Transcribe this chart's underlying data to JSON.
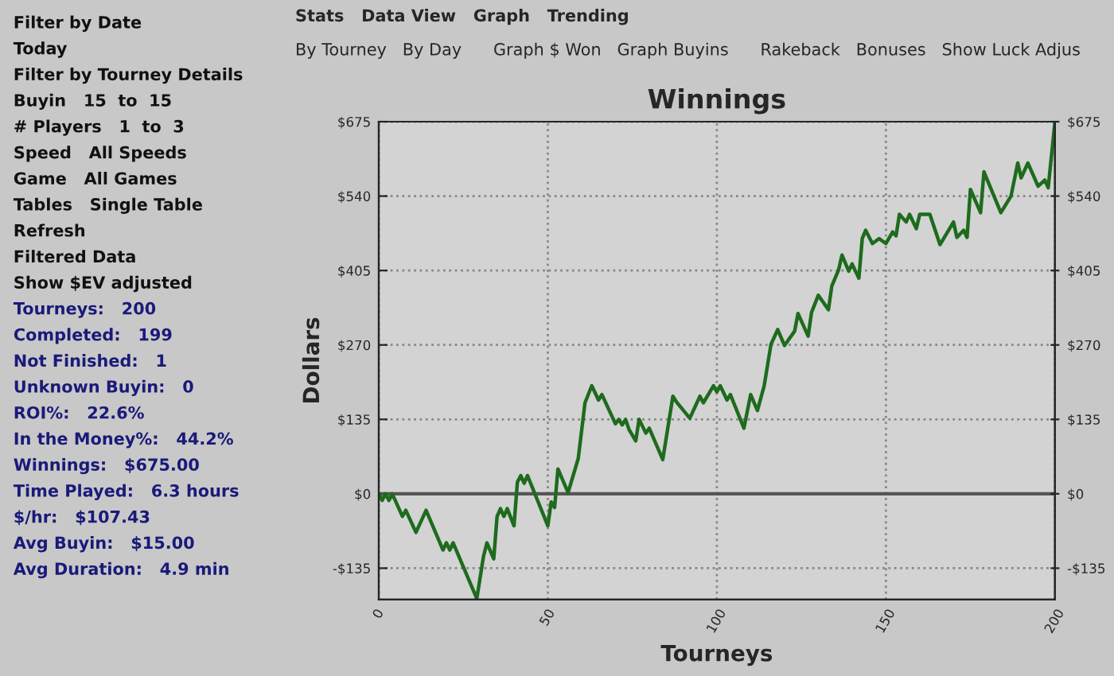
{
  "chart_data": {
    "type": "line",
    "title": "Winnings",
    "xlabel": "Tourneys",
    "ylabel": "Dollars",
    "x": [
      0,
      1,
      2,
      3,
      4,
      7,
      8,
      11,
      14,
      19,
      20,
      21,
      22,
      29,
      31,
      32,
      34,
      35,
      36,
      37,
      38,
      40,
      41,
      42,
      43,
      44,
      50,
      51,
      52,
      53,
      56,
      59,
      61,
      63,
      65,
      66,
      70,
      71,
      72,
      73,
      74,
      76,
      77,
      79,
      80,
      84,
      87,
      88,
      92,
      95,
      96,
      99,
      100,
      101,
      103,
      104,
      108,
      110,
      112,
      114,
      116,
      118,
      120,
      123,
      124,
      127,
      128,
      130,
      133,
      134,
      136,
      137,
      139,
      140,
      142,
      143,
      144,
      146,
      148,
      150,
      152,
      153,
      154,
      156,
      157,
      159,
      160,
      163,
      166,
      170,
      171,
      173,
      174,
      175,
      178,
      179,
      184,
      187,
      189,
      190,
      192,
      195,
      197,
      198,
      200
    ],
    "series": [
      {
        "color": "#1e6b1e",
        "values": [
          0,
          -12,
          0,
          -12,
          0,
          -41,
          -30,
          -70,
          -30,
          -102,
          -89,
          -102,
          -89,
          -190,
          -113,
          -89,
          -118,
          -41,
          -27,
          -41,
          -27,
          -58,
          21,
          33,
          19,
          33,
          -58,
          -15,
          -25,
          45,
          2,
          64,
          165,
          196,
          170,
          180,
          127,
          135,
          125,
          135,
          117,
          96,
          135,
          110,
          119,
          62,
          177,
          167,
          137,
          177,
          165,
          196,
          185,
          196,
          170,
          180,
          119,
          180,
          151,
          196,
          271,
          298,
          269,
          295,
          327,
          286,
          329,
          360,
          334,
          377,
          406,
          433,
          404,
          417,
          391,
          463,
          478,
          454,
          463,
          454,
          475,
          468,
          507,
          493,
          507,
          481,
          507,
          507,
          452,
          493,
          465,
          478,
          465,
          552,
          510,
          584,
          510,
          540,
          600,
          573,
          600,
          558,
          569,
          555,
          675
        ]
      }
    ],
    "xlim": [
      0,
      200
    ],
    "xticks": [
      0,
      50,
      100,
      150,
      200
    ],
    "ylim": [
      -192,
      675
    ],
    "yticks": [
      {
        "value": -135,
        "label": "-$135"
      },
      {
        "value": 0,
        "label": "$0"
      },
      {
        "value": 135,
        "label": "$135"
      },
      {
        "value": 270,
        "label": "$270"
      },
      {
        "value": 405,
        "label": "$405"
      },
      {
        "value": 540,
        "label": "$540"
      },
      {
        "value": 675,
        "label": "$675"
      }
    ],
    "y2lim": [
      -192,
      675
    ],
    "y2ticks": [
      {
        "value": -135,
        "label": "-$135"
      },
      {
        "value": 0,
        "label": "$0"
      },
      {
        "value": 135,
        "label": "$135"
      },
      {
        "value": 270,
        "label": "$270"
      },
      {
        "value": 405,
        "label": "$405"
      },
      {
        "value": 540,
        "label": "$540"
      },
      {
        "value": 675,
        "label": "$675"
      }
    ],
    "ref_lines": [
      {
        "axis": "y",
        "value": 0,
        "color": "#555555"
      }
    ],
    "grid": true,
    "line_style": "solid",
    "marker": "none",
    "legend": false,
    "annotations": [
      "Stats   Data View   Graph   Trending",
      "By Tourney   By Day      Graph $ Won   Graph Buyins      Rakeback   Bonuses   Show Luck Adjus",
      "Filter by Date",
      "Today",
      "Filter by Tourney Details",
      "Buyin   15  to  15",
      "# Players   1  to  3",
      "Speed   All Speeds",
      "Game   All Games",
      "Tables   Single Table",
      "Refresh",
      "Filtered Data",
      "Show $EV adjusted",
      "Tourneys:   200",
      "Completed:   199",
      "Not Finished:   1",
      "Unknown Buyin:   0",
      "ROI%:   22.6%",
      "In the Money%:   44.2%",
      "Winnings:   $675.00",
      "Time Played:   6.3 hours",
      "$/hr:   $107.43",
      "Avg Buyin:   $15.00",
      "Avg Duration:   4.9 min"
    ]
  }
}
